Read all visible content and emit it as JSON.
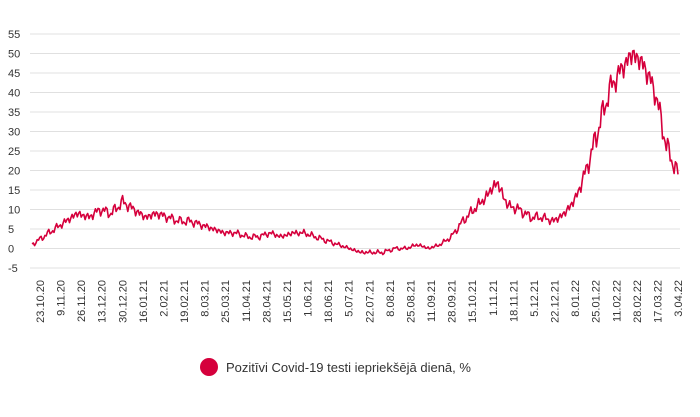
{
  "chart_data": {
    "type": "line",
    "title": "",
    "xlabel": "",
    "ylabel": "",
    "ylim": [
      -5,
      55
    ],
    "yticks": [
      55,
      50,
      45,
      40,
      35,
      30,
      25,
      20,
      15,
      10,
      5,
      0,
      -5
    ],
    "grid": true,
    "legend_position": "bottom",
    "x_tick_labels": [
      "23.10.20",
      "9.11.20",
      "26.11.20",
      "13.12.20",
      "30.12.20",
      "16.01.21",
      "2.02.21",
      "19.02.21",
      "8.03.21",
      "25.03.21",
      "11.04.21",
      "28.04.21",
      "15.05.21",
      "1.06.21",
      "18.06.21",
      "5.07.21",
      "22.07.21",
      "8.08.21",
      "25.08.21",
      "11.09.21",
      "28.09.21",
      "15.10.21",
      "1.11.21",
      "18.11.21",
      "5.12.21",
      "22.12.21",
      "8.01.22",
      "25.01.22",
      "11.02.22",
      "28.02.22",
      "17.03.22",
      "3.04.22"
    ],
    "series": [
      {
        "name": "Pozitīvi Covid-19 testi iepriekšējā dienā, %",
        "color": "#d5003c",
        "values": [
          1,
          3,
          5,
          7,
          9,
          8,
          10,
          9,
          12,
          10,
          8,
          9,
          8,
          7,
          7,
          6,
          5,
          4,
          4,
          3,
          3,
          4,
          3,
          4,
          4,
          3,
          2,
          1,
          0,
          -1,
          -1,
          -1,
          0,
          0,
          1,
          0,
          1,
          3,
          7,
          10,
          13,
          17,
          11,
          10,
          8,
          8,
          7,
          9,
          13,
          21,
          31,
          41,
          46,
          50,
          47,
          40,
          26,
          19
        ]
      }
    ]
  },
  "legend": {
    "label": "Pozitīvi Covid-19 testi iepriekšējā dienā, %"
  },
  "colors": {
    "series": "#d5003c",
    "grid": "#e0e0e0",
    "text": "#333333"
  }
}
